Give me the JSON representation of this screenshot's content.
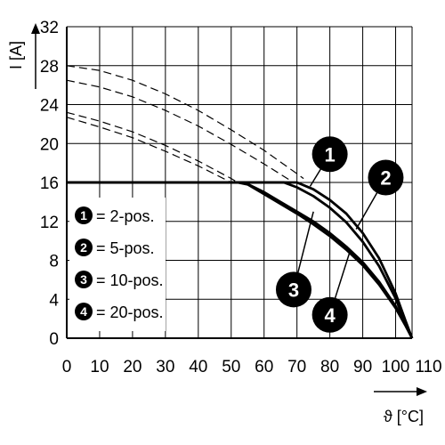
{
  "chart_data": {
    "type": "line",
    "xlabel": "ϑ [°C]",
    "ylabel": "I [A]",
    "xlim": [
      0,
      105
    ],
    "ylim": [
      0,
      32
    ],
    "x_ticks": [
      "0",
      "10",
      "20",
      "30",
      "40",
      "50",
      "60",
      "70",
      "80",
      "90",
      "100",
      "110"
    ],
    "y_ticks": [
      "0",
      "4",
      "8",
      "12",
      "16",
      "20",
      "24",
      "28",
      "32"
    ],
    "grid": true,
    "legend": {
      "placement": "left-middle",
      "entries": [
        {
          "badge": "1",
          "label": "= 2-pos."
        },
        {
          "badge": "2",
          "label": "= 5-pos."
        },
        {
          "badge": "3",
          "label": "= 10-pos."
        },
        {
          "badge": "4",
          "label": "= 20-pos."
        }
      ]
    },
    "series": [
      {
        "badge": "1",
        "style": "solid",
        "points": [
          [
            0,
            16
          ],
          [
            70,
            16
          ],
          [
            75,
            15.3
          ],
          [
            80,
            14.2
          ],
          [
            85,
            12.8
          ],
          [
            90,
            10.8
          ],
          [
            95,
            8.2
          ],
          [
            100,
            4.6
          ],
          [
            103,
            1.8
          ],
          [
            105,
            0
          ]
        ]
      },
      {
        "badge": "2",
        "style": "solid",
        "points": [
          [
            0,
            16
          ],
          [
            66,
            16
          ],
          [
            70,
            15.5
          ],
          [
            75,
            14.6
          ],
          [
            80,
            13.4
          ],
          [
            85,
            11.9
          ],
          [
            90,
            9.9
          ],
          [
            95,
            7.4
          ],
          [
            100,
            4.1
          ],
          [
            103,
            1.5
          ],
          [
            105,
            0
          ]
        ]
      },
      {
        "badge": "3",
        "style": "solid",
        "points": [
          [
            0,
            16
          ],
          [
            54,
            16
          ],
          [
            60,
            15
          ],
          [
            65,
            14
          ],
          [
            70,
            13
          ],
          [
            75,
            12
          ],
          [
            80,
            10.8
          ],
          [
            85,
            9.4
          ],
          [
            90,
            7.8
          ],
          [
            95,
            5.8
          ],
          [
            100,
            3.3
          ],
          [
            103,
            1.4
          ],
          [
            105,
            0
          ]
        ]
      },
      {
        "badge": "4",
        "style": "solid",
        "points": [
          [
            0,
            16
          ],
          [
            52,
            16
          ],
          [
            55,
            15.8
          ],
          [
            60,
            14.8
          ],
          [
            65,
            13.8
          ],
          [
            70,
            12.8
          ],
          [
            75,
            11.7
          ],
          [
            80,
            10.5
          ],
          [
            85,
            9.1
          ],
          [
            90,
            7.5
          ],
          [
            95,
            5.5
          ],
          [
            100,
            3.1
          ],
          [
            103,
            1.3
          ],
          [
            105,
            0
          ]
        ]
      },
      {
        "badge": "1",
        "style": "dashed",
        "points": [
          [
            0,
            28
          ],
          [
            10,
            27.5
          ],
          [
            20,
            26.5
          ],
          [
            30,
            25.1
          ],
          [
            40,
            23.4
          ],
          [
            50,
            21.4
          ],
          [
            60,
            19.3
          ],
          [
            70,
            16.9
          ],
          [
            72,
            16.4
          ]
        ]
      },
      {
        "badge": "2",
        "style": "dashed",
        "points": [
          [
            0,
            26.5
          ],
          [
            10,
            25.8
          ],
          [
            20,
            24.8
          ],
          [
            30,
            23.4
          ],
          [
            40,
            21.8
          ],
          [
            50,
            19.9
          ],
          [
            60,
            17.9
          ],
          [
            68,
            16.2
          ]
        ]
      },
      {
        "badge": "3",
        "style": "dashed",
        "points": [
          [
            0,
            23.2
          ],
          [
            10,
            22.3
          ],
          [
            20,
            21.2
          ],
          [
            30,
            19.8
          ],
          [
            40,
            18.2
          ],
          [
            50,
            16.4
          ],
          [
            52,
            16
          ]
        ]
      },
      {
        "badge": "4",
        "style": "dashed",
        "points": [
          [
            0,
            22.7
          ],
          [
            10,
            21.7
          ],
          [
            20,
            20.6
          ],
          [
            30,
            19.2
          ],
          [
            40,
            17.7
          ],
          [
            50,
            16
          ]
        ]
      }
    ],
    "callouts": [
      {
        "badge": "1",
        "at": [
          80,
          18.9
        ],
        "points_to": [
          74,
          15.6
        ]
      },
      {
        "badge": "2",
        "at": [
          97,
          16.5
        ],
        "points_to": [
          88,
          11.2
        ]
      },
      {
        "badge": "3",
        "at": [
          69,
          5
        ],
        "points_to": [
          75,
          13
        ]
      },
      {
        "badge": "4",
        "at": [
          80,
          2.4
        ],
        "points_to": [
          86,
          8.8
        ]
      }
    ]
  }
}
